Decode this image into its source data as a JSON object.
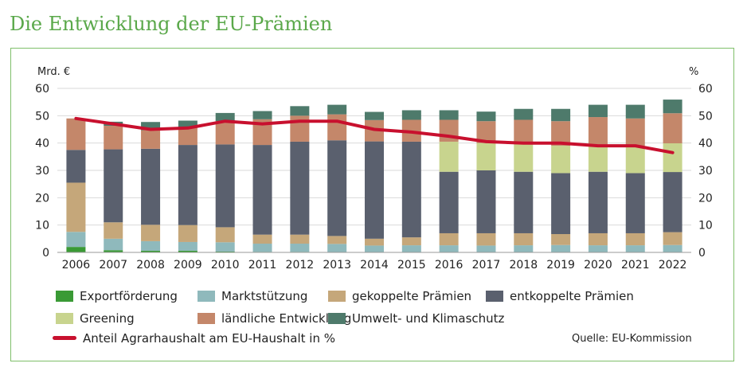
{
  "title": "Die Entwicklung der EU-Prämien",
  "source": "Quelle: EU-Kommission",
  "chart_data": {
    "type": "bar",
    "stacked": true,
    "ylabel_left": "Mrd. €",
    "ylabel_right": "%",
    "ylim": [
      0,
      60
    ],
    "ylim_right": [
      0,
      60
    ],
    "yticks": [
      0,
      10,
      20,
      30,
      40,
      50,
      60
    ],
    "grid": "horizontal",
    "legend_position": "bottom",
    "categories": [
      "2006",
      "2007",
      "2008",
      "2009",
      "2010",
      "2011",
      "2012",
      "2013",
      "2014",
      "2015",
      "2016",
      "2017",
      "2018",
      "2019",
      "2020",
      "2021",
      "2022"
    ],
    "series": [
      {
        "name": "Exportförderung",
        "color": "#3a9a35",
        "values": [
          2.0,
          0.8,
          0.6,
          0.6,
          0.3,
          0.2,
          0.2,
          0.1,
          0.1,
          0.1,
          0.1,
          0.1,
          0.1,
          0.1,
          0.1,
          0.1,
          0.1
        ]
      },
      {
        "name": "Marktstützung",
        "color": "#8fb9bc",
        "values": [
          5.5,
          4.2,
          3.5,
          3.2,
          3.4,
          3.0,
          3.0,
          3.0,
          2.4,
          2.5,
          2.5,
          2.4,
          2.5,
          2.6,
          2.5,
          2.5,
          2.6
        ]
      },
      {
        "name": "gekoppelte Prämien",
        "color": "#c5a77a",
        "values": [
          18.0,
          6.0,
          6.0,
          6.2,
          5.5,
          3.3,
          3.3,
          2.9,
          2.5,
          2.9,
          4.4,
          4.5,
          4.4,
          4.0,
          4.4,
          4.4,
          4.7
        ]
      },
      {
        "name": "entkoppelte Prämien",
        "color": "#5a606e",
        "values": [
          12.0,
          26.7,
          27.8,
          29.3,
          30.3,
          32.8,
          34.0,
          35.0,
          35.6,
          35.0,
          22.5,
          23.0,
          22.5,
          22.3,
          22.5,
          22.0,
          22.0
        ]
      },
      {
        "name": "Greening",
        "color": "#c8d48e",
        "values": [
          0,
          0,
          0,
          0,
          0,
          0,
          0,
          0,
          0,
          0,
          11.0,
          10.0,
          10.0,
          10.0,
          10.0,
          10.0,
          10.5
        ]
      },
      {
        "name": "ländliche Entwicklung",
        "color": "#c4876a",
        "values": [
          11.5,
          8.6,
          6.8,
          6.4,
          8.5,
          9.4,
          9.5,
          9.5,
          7.8,
          8.0,
          8.0,
          8.0,
          9.0,
          9.0,
          10.0,
          10.0,
          11.0
        ]
      },
      {
        "name": "Umwelt- und Klimaschutz",
        "color": "#4e7a6b",
        "values": [
          0,
          1.5,
          3.0,
          2.5,
          3.0,
          3.0,
          3.5,
          3.5,
          3.0,
          3.5,
          3.5,
          3.5,
          4.0,
          4.5,
          4.5,
          5.0,
          5.0
        ]
      }
    ],
    "line": {
      "name": "Anteil Agrarhaushalt am EU-Haushalt in %",
      "color": "#c8102e",
      "axis": "right",
      "values": [
        49.0,
        47.0,
        45.0,
        45.5,
        48.0,
        47.0,
        48.0,
        48.0,
        45.0,
        44.0,
        42.5,
        40.5,
        40.0,
        40.0,
        39.0,
        39.0,
        36.5
      ]
    }
  }
}
